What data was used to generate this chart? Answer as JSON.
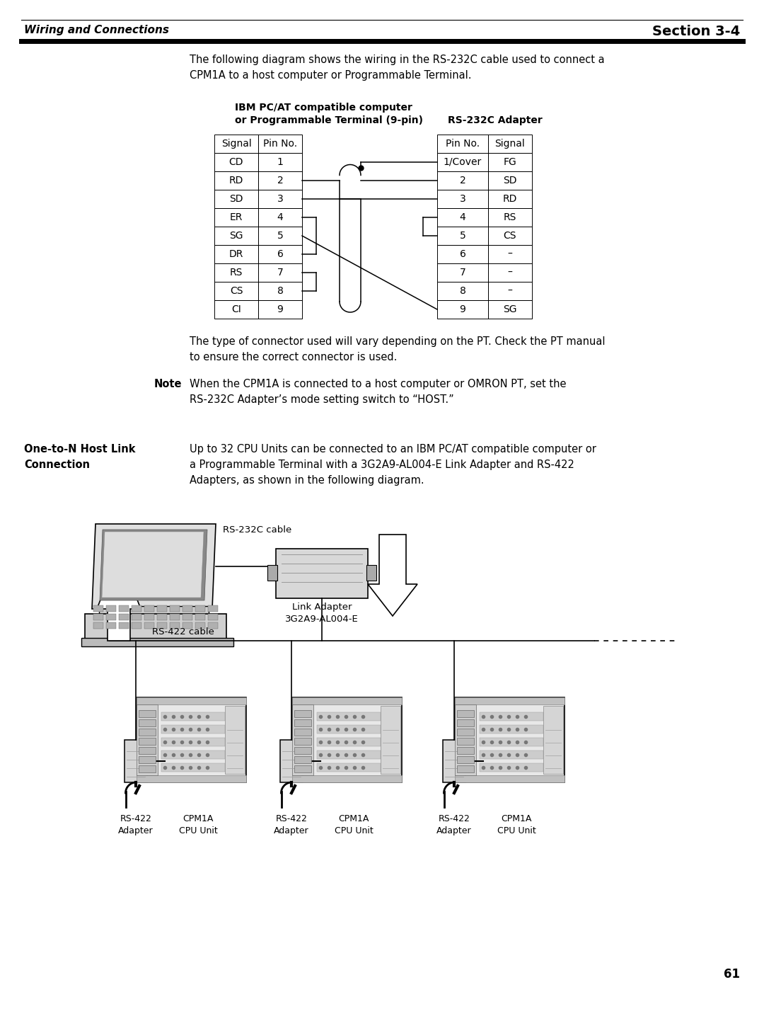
{
  "page_bg": "#ffffff",
  "header_title_left": "Wiring and Connections",
  "header_title_right": "Section 3-4",
  "intro_text": "The following diagram shows the wiring in the RS-232C cable used to connect a\nCPM1A to a host computer or Programmable Terminal.",
  "ibm_table_title_line1": "IBM PC/AT compatible computer",
  "ibm_table_title_line2": "or Programmable Terminal (9-pin)",
  "rs232_table_title": "RS-232C Adapter",
  "ibm_rows": [
    [
      "Signal",
      "Pin No."
    ],
    [
      "CD",
      "1"
    ],
    [
      "RD",
      "2"
    ],
    [
      "SD",
      "3"
    ],
    [
      "ER",
      "4"
    ],
    [
      "SG",
      "5"
    ],
    [
      "DR",
      "6"
    ],
    [
      "RS",
      "7"
    ],
    [
      "CS",
      "8"
    ],
    [
      "CI",
      "9"
    ]
  ],
  "rs232_rows": [
    [
      "Pin No.",
      "Signal"
    ],
    [
      "1/Cover",
      "FG"
    ],
    [
      "2",
      "SD"
    ],
    [
      "3",
      "RD"
    ],
    [
      "4",
      "RS"
    ],
    [
      "5",
      "CS"
    ],
    [
      "6",
      "–"
    ],
    [
      "7",
      "–"
    ],
    [
      "8",
      "–"
    ],
    [
      "9",
      "SG"
    ]
  ],
  "note_label": "Note",
  "note_text": "When the CPM1A is connected to a host computer or OMRON PT, set the\nRS-232C Adapter’s mode setting switch to “HOST.”",
  "connector_text": "The type of connector used will vary depending on the PT. Check the PT manual\nto ensure the correct connector is used.",
  "otn_label": "One-to-N Host Link\nConnection",
  "otn_text": "Up to 32 CPU Units can be connected to an IBM PC/AT compatible computer or\na Programmable Terminal with a 3G2A9-AL004-E Link Adapter and RS-422\nAdapters, as shown in the following diagram.",
  "rs232c_cable_label": "RS-232C cable",
  "link_adapter_label": "Link Adapter\n3G2A9-AL004-E",
  "rs422_cable_label": "RS-422 cable",
  "page_number": "61"
}
